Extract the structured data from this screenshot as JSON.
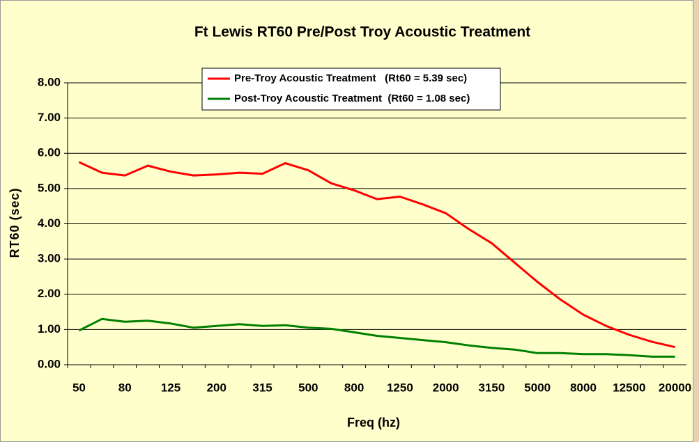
{
  "chart_data": {
    "type": "line",
    "title": "Ft Lewis RT60 Pre/Post Troy Acoustic Treatment",
    "x_label": "Freq (hz)",
    "y_label": "RT60 (sec)",
    "categories": [
      "50",
      null,
      "80",
      null,
      "125",
      null,
      "200",
      null,
      "315",
      null,
      "500",
      null,
      "800",
      null,
      "1250",
      null,
      "2000",
      null,
      "3150",
      null,
      "5000",
      null,
      "8000",
      null,
      "12500",
      null,
      "20000"
    ],
    "series": [
      {
        "name": "Pre-Troy Acoustic Treatment   (Rt60 = 5.39 sec)",
        "color": "#ff0000",
        "values": [
          5.75,
          5.45,
          5.37,
          5.65,
          5.48,
          5.37,
          5.4,
          5.45,
          5.42,
          5.72,
          5.52,
          5.15,
          4.95,
          4.7,
          4.77,
          4.55,
          4.3,
          3.85,
          3.45,
          2.9,
          2.35,
          1.85,
          1.42,
          1.1,
          0.85,
          0.65,
          0.5
        ]
      },
      {
        "name": "Post-Troy Acoustic Treatment  (Rt60 = 1.08 sec)",
        "color": "#008000",
        "values": [
          0.97,
          1.3,
          1.22,
          1.25,
          1.17,
          1.05,
          1.1,
          1.15,
          1.1,
          1.12,
          1.05,
          1.02,
          0.92,
          0.82,
          0.76,
          0.7,
          0.64,
          0.55,
          0.48,
          0.43,
          0.33,
          0.33,
          0.3,
          0.3,
          0.27,
          0.23,
          0.23
        ]
      }
    ],
    "ylim": [
      0,
      8
    ],
    "yticks": [
      {
        "value": 0,
        "label": "0.00"
      },
      {
        "value": 1,
        "label": "1.00"
      },
      {
        "value": 2,
        "label": "2.00"
      },
      {
        "value": 3,
        "label": "3.00"
      },
      {
        "value": 4,
        "label": "4.00"
      },
      {
        "value": 5,
        "label": "5.00"
      },
      {
        "value": 6,
        "label": "6.00"
      },
      {
        "value": 7,
        "label": "7.00"
      },
      {
        "value": 8,
        "label": "8.00"
      }
    ],
    "grid": true,
    "legend": "top"
  }
}
